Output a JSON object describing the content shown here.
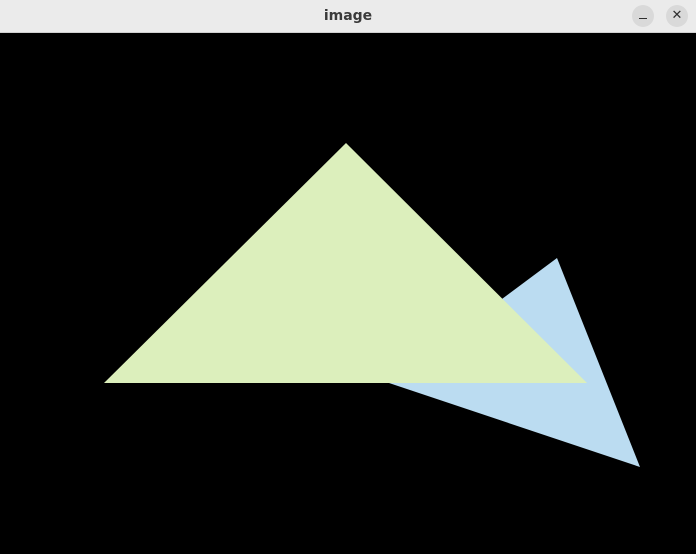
{
  "window": {
    "title": "image",
    "minimize_icon": "minimize-icon",
    "close_icon": "close-icon",
    "close_glyph": "✕"
  },
  "canvas": {
    "background": "#000000",
    "shapes": [
      {
        "name": "blue-triangle",
        "color": "#bbdcf1"
      },
      {
        "name": "green-triangle",
        "color": "#dcefbc"
      }
    ]
  }
}
